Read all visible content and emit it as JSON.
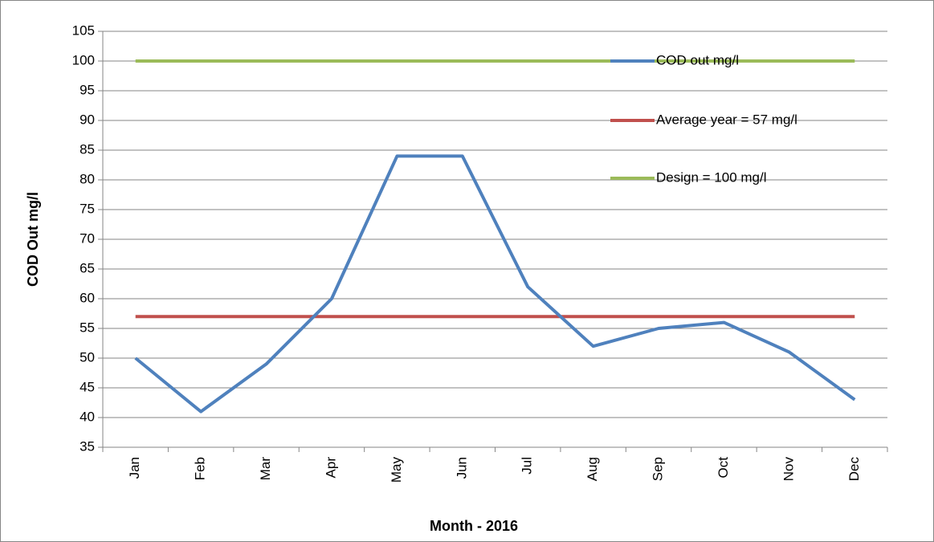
{
  "chart_data": {
    "type": "line",
    "x_label": "Month - 2016",
    "y_label": "COD Out mg/l",
    "categories": [
      "Jan",
      "Feb",
      "Mar",
      "Apr",
      "May",
      "Jun",
      "Jul",
      "Aug",
      "Sep",
      "Oct",
      "Nov",
      "Dec"
    ],
    "series": [
      {
        "name": "COD out mg/l",
        "color": "#4f81bd",
        "values": [
          50,
          41,
          49,
          60,
          84,
          84,
          62,
          52,
          55,
          56,
          51,
          43
        ]
      },
      {
        "name": "Average year = 57 mg/l",
        "color": "#c0504d",
        "values": [
          57,
          57,
          57,
          57,
          57,
          57,
          57,
          57,
          57,
          57,
          57,
          57
        ]
      },
      {
        "name": "Design = 100 mg/l",
        "color": "#9bbb59",
        "values": [
          100,
          100,
          100,
          100,
          100,
          100,
          100,
          100,
          100,
          100,
          100,
          100
        ]
      }
    ],
    "ylim": [
      35,
      105
    ],
    "yticks": [
      35,
      40,
      45,
      50,
      55,
      60,
      65,
      70,
      75,
      80,
      85,
      90,
      95,
      100,
      105
    ],
    "grid": true,
    "legend": "upper right"
  }
}
